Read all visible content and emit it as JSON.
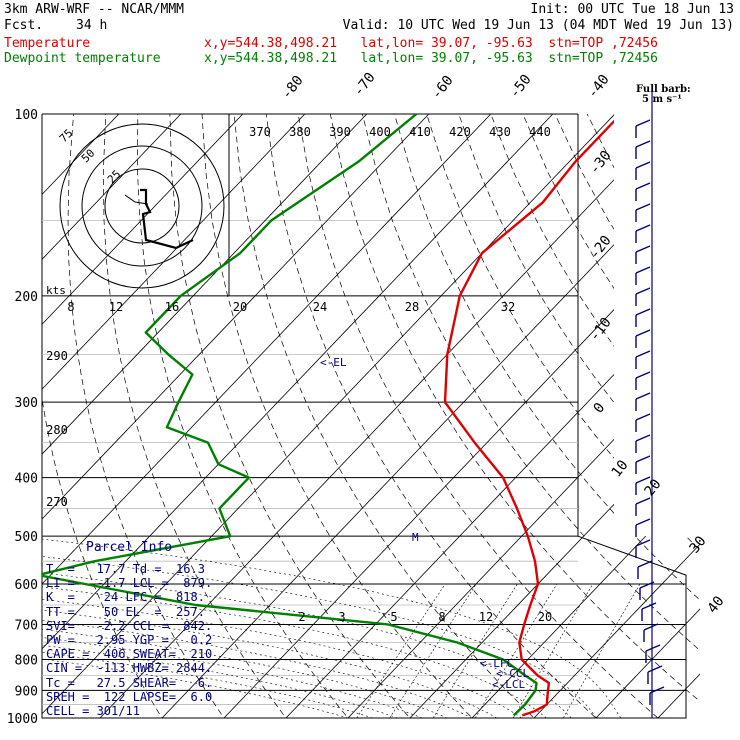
{
  "header": {
    "model": "3km ARW-WRF -- NCAR/MMM",
    "init": "Init: 00 UTC Tue 18 Jun 13",
    "fcst_label": "Fcst.",
    "fcst_value": "34 h",
    "valid": "Valid: 10 UTC Wed 19 Jun 13 (04 MDT Wed 19 Jun 13)",
    "temp_label": "Temperature",
    "dew_label": "Dewpoint temperature",
    "location": "x,y=544.38,498.21   lat,lon= 39.07, -95.63  stn=TOP ,72456"
  },
  "barb_legend": {
    "line1": "Full barb:",
    "line2": "5 m s⁻¹"
  },
  "colors": {
    "temperature": "#e00000",
    "dewpoint": "#008000",
    "text": "#000080",
    "grid": "#000000"
  },
  "chart_data": {
    "type": "line",
    "title": "",
    "y_axis": "pressure (hPa)",
    "pressure_ticks": [
      100,
      200,
      300,
      400,
      500,
      600,
      700,
      800,
      900,
      1000
    ],
    "skewed_isotherm_labels": [
      -80,
      -70,
      -60,
      -50,
      -40,
      -30,
      -20,
      -10,
      0,
      10,
      20,
      30,
      40
    ],
    "theta_e_labels": [
      370,
      380,
      390,
      400,
      410,
      420,
      430,
      440
    ],
    "theta_labels": [
      290,
      280,
      270
    ],
    "mixing_ratio_top_labels": [
      8,
      12,
      16,
      20,
      24,
      28,
      32
    ],
    "mixing_ratio_low_labels": [
      2,
      3,
      5,
      8,
      12,
      20
    ],
    "series": [
      {
        "name": "Temperature",
        "color": "#e00000",
        "points": [
          [
            100,
            -59
          ],
          [
            120,
            -59
          ],
          [
            140,
            -58
          ],
          [
            170,
            -60
          ],
          [
            200,
            -57
          ],
          [
            250,
            -50
          ],
          [
            300,
            -43
          ],
          [
            350,
            -32
          ],
          [
            400,
            -22
          ],
          [
            450,
            -15
          ],
          [
            500,
            -9
          ],
          [
            550,
            -4
          ],
          [
            600,
            0
          ],
          [
            650,
            2
          ],
          [
            700,
            4
          ],
          [
            750,
            6
          ],
          [
            800,
            9
          ],
          [
            850,
            14
          ],
          [
            875,
            17
          ],
          [
            900,
            18
          ],
          [
            925,
            19
          ],
          [
            950,
            20
          ],
          [
            975,
            19
          ],
          [
            990,
            17.7
          ]
        ]
      },
      {
        "name": "Dewpoint temperature",
        "color": "#008000",
        "points": [
          [
            100,
            -92
          ],
          [
            120,
            -94
          ],
          [
            150,
            -99
          ],
          [
            170,
            -99
          ],
          [
            200,
            -102
          ],
          [
            230,
            -102
          ],
          [
            250,
            -95
          ],
          [
            270,
            -88
          ],
          [
            300,
            -86
          ],
          [
            330,
            -84
          ],
          [
            350,
            -75
          ],
          [
            380,
            -70
          ],
          [
            400,
            -63
          ],
          [
            450,
            -63
          ],
          [
            500,
            -57
          ],
          [
            550,
            -75
          ],
          [
            580,
            -82
          ],
          [
            650,
            -52
          ],
          [
            700,
            -18
          ],
          [
            750,
            -4
          ],
          [
            800,
            6
          ],
          [
            850,
            12
          ],
          [
            875,
            15
          ],
          [
            900,
            16
          ],
          [
            950,
            16.5
          ],
          [
            975,
            16.4
          ],
          [
            990,
            16.3
          ]
        ]
      }
    ],
    "annotations": [
      "<-EL",
      "<-LFC",
      "<-CCL",
      "<-LCL"
    ],
    "hodograph": {
      "units": "kts",
      "rings": [
        25,
        50,
        75
      ]
    }
  },
  "parcel_info": {
    "title": "Parcel Info",
    "rows": [
      "T  =   17.7 Td =  16.3",
      "LI =   -1.7 LCL =  879.",
      "K  =    24 LFC =  818.",
      "TT =    50 EL  =  257.",
      "SVI=   -2.2 CCL =  842.",
      "PW =   2.95 YGP =   0.2",
      "CAPE =  406 SWEAT=  210",
      "CIN =  -113 HWBZ= 2844.",
      "Tc =   27.5 SHEAR=   6.",
      "SREH =  122 LAPSE=  6.0",
      "CELL = 301/11"
    ]
  }
}
